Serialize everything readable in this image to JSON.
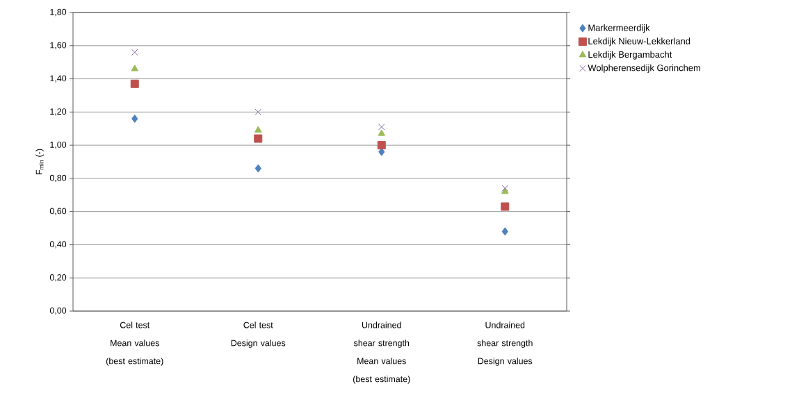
{
  "chart_data": {
    "type": "scatter",
    "categories": [
      "Cel test\nMean values\n(best estimate)",
      "Cel test\nDesign values",
      "Undrained shear strength\nMean values\n(best estimate)",
      "Undrained shear strength\nDesign values"
    ],
    "series": [
      {
        "name": "Markermeerdijk",
        "color": "#4f81bd",
        "marker": "diamond",
        "values": [
          1.16,
          0.86,
          0.96,
          0.48
        ]
      },
      {
        "name": "Lekdijk Nieuw-Lekkerland",
        "color": "#c0504d",
        "marker": "square",
        "values": [
          1.37,
          1.04,
          1.0,
          0.63
        ]
      },
      {
        "name": "Lekdijk Bergambacht",
        "color": "#9bbb59",
        "marker": "triangle",
        "values": [
          1.46,
          1.09,
          1.07,
          0.72
        ]
      },
      {
        "name": "Wolpherensedijk Gorinchem",
        "color": "#8064a2",
        "marker": "cross",
        "values": [
          1.56,
          1.2,
          1.11,
          0.74
        ]
      }
    ],
    "ylabel": "F$_{min}$ (-)",
    "ylim": [
      0,
      1.8
    ],
    "yticks": [
      {
        "value": 0,
        "label": "0,00"
      },
      {
        "value": 0.2,
        "label": "0,20"
      },
      {
        "value": 0.4,
        "label": "0,40"
      },
      {
        "value": 0.6,
        "label": "0,60"
      },
      {
        "value": 0.8,
        "label": "0,80"
      },
      {
        "value": 1.0,
        "label": "1,00"
      },
      {
        "value": 1.2,
        "label": "1,20"
      },
      {
        "value": 1.4,
        "label": "1,40"
      },
      {
        "value": 1.6,
        "label": "1,60"
      },
      {
        "value": 1.8,
        "label": "1,80"
      }
    ],
    "grid": "y",
    "legend": "right"
  }
}
